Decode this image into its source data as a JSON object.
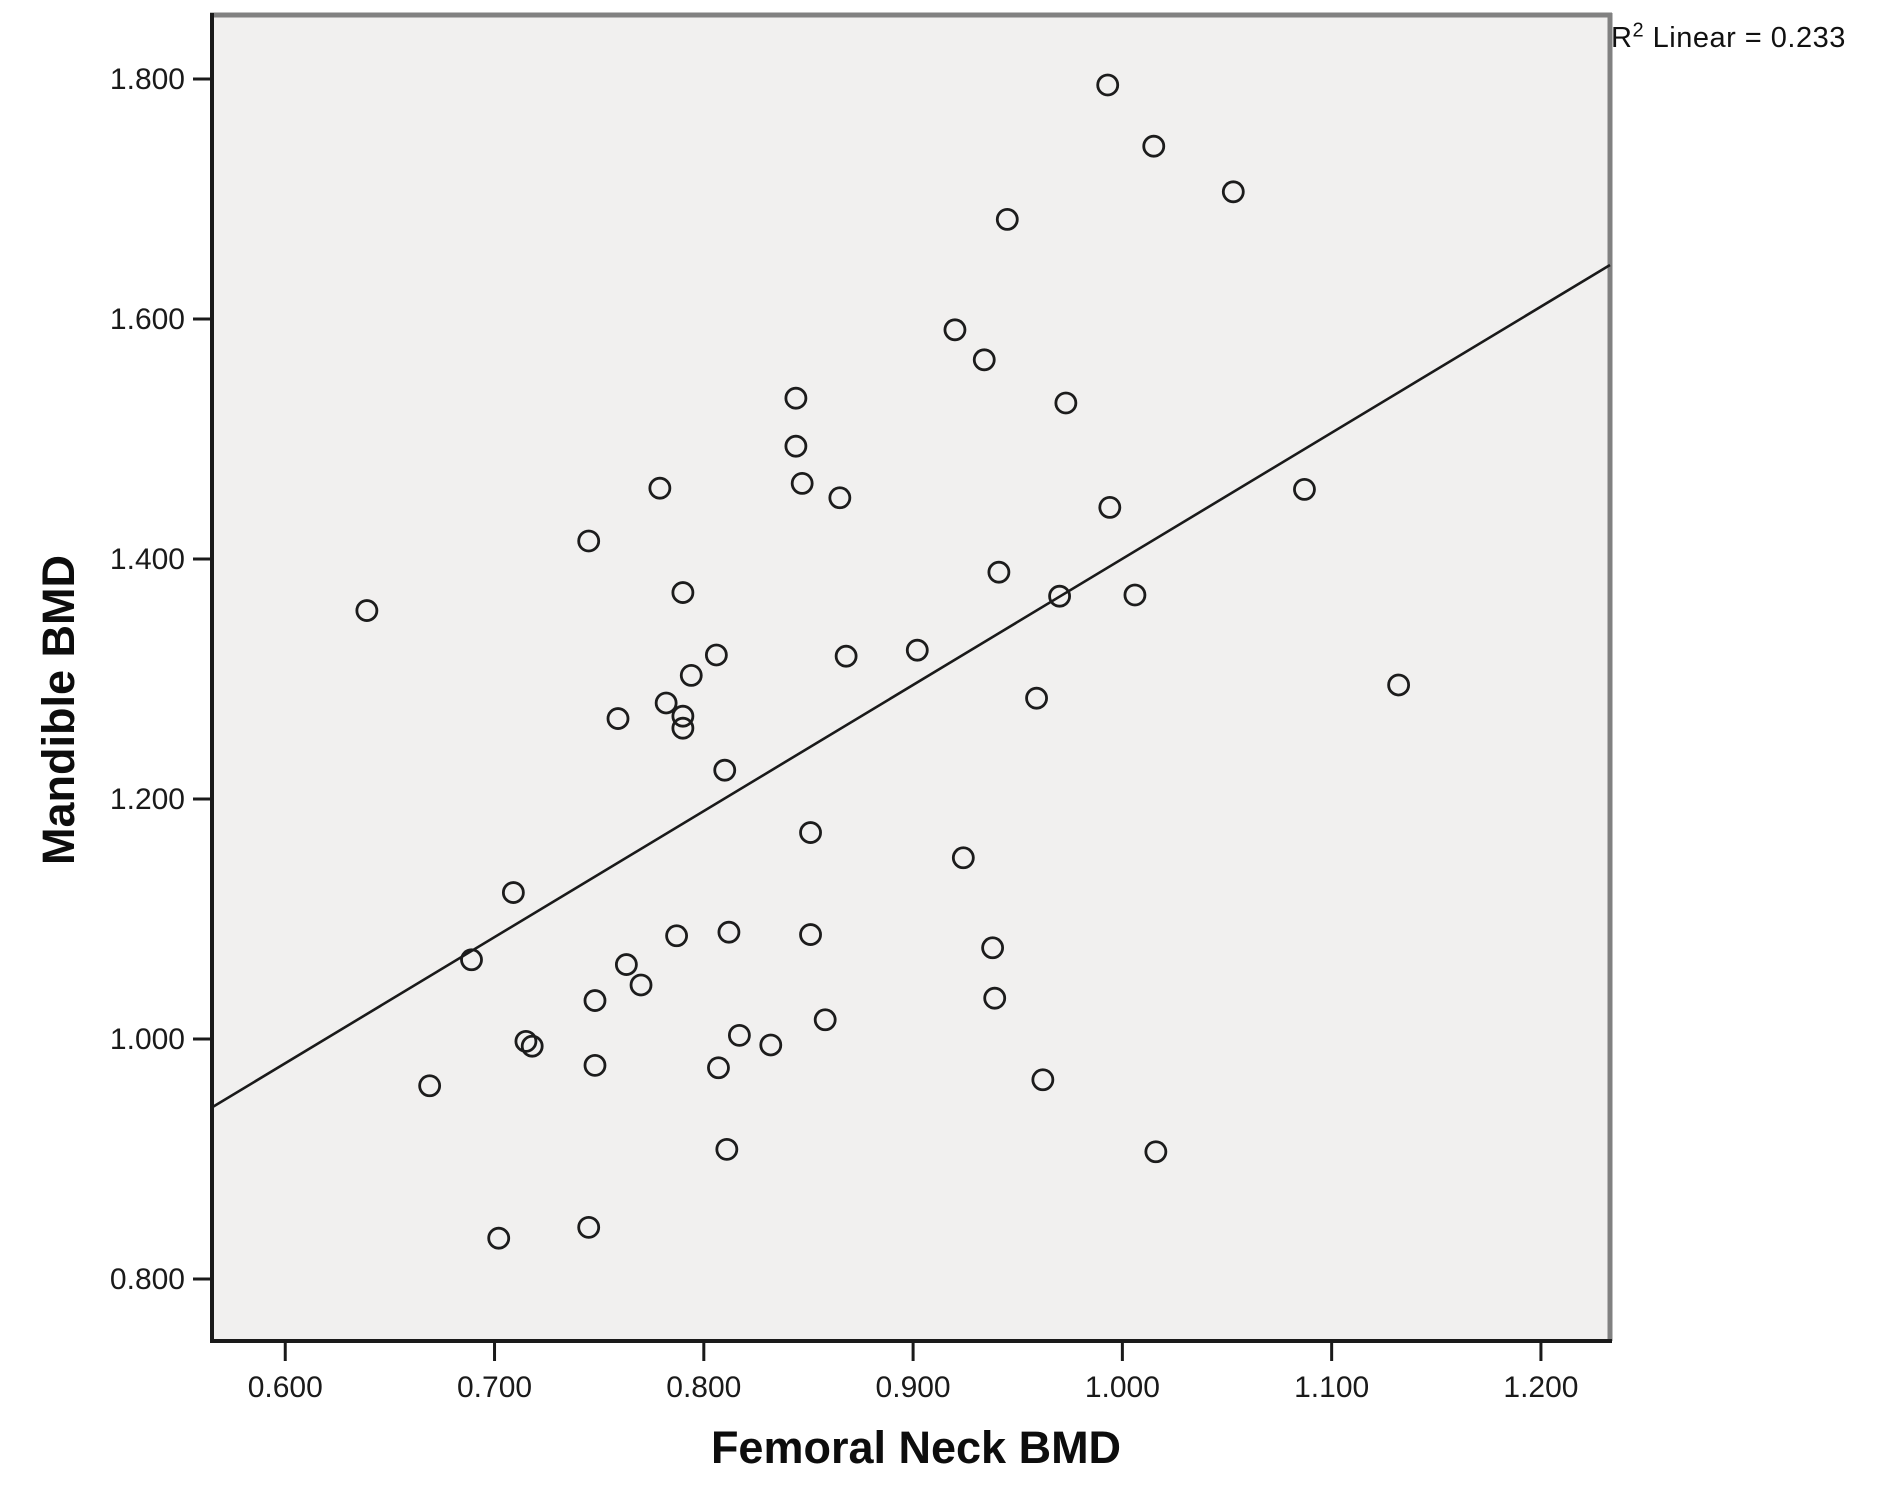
{
  "annotation": {
    "base": "R",
    "sup": "2",
    "rest": " Linear = 0.233"
  },
  "chart_data": {
    "type": "scatter",
    "title": "",
    "xlabel": "Femoral Neck BMD",
    "ylabel": "Mandible BMD",
    "legend": "none",
    "grid": false,
    "r_squared": 0.233,
    "xlim": [
      0.565,
      1.233
    ],
    "ylim": [
      0.7483,
      1.855
    ],
    "x_tick_values": [
      0.6,
      0.7,
      0.8,
      0.9,
      1.0,
      1.1,
      1.2
    ],
    "x_tick_labels": [
      "0.600",
      "0.700",
      "0.800",
      "0.900",
      "1.000",
      "1.100",
      "1.200"
    ],
    "y_tick_values": [
      0.8,
      1.0,
      1.2,
      1.4,
      1.6,
      1.8
    ],
    "y_tick_labels": [
      "0.800",
      "1.000",
      "1.200",
      "1.400",
      "1.600",
      "1.800"
    ],
    "fit_line": {
      "x": [
        0.565,
        1.233
      ],
      "y": [
        0.943,
        1.645
      ]
    },
    "marker": {
      "radius": 10,
      "stroke_width": 2.8,
      "color": "#1c1c1c",
      "fill": "none"
    },
    "colors": {
      "plot_bg": "#f1f0ef",
      "frame_dark": "#1a1a1a",
      "frame_gray": "#818181",
      "line": "#1a1a1a",
      "text": "#1a1a1a"
    },
    "points": [
      [
        0.993,
        1.795
      ],
      [
        1.015,
        1.744
      ],
      [
        1.053,
        1.706
      ],
      [
        0.945,
        1.683
      ],
      [
        0.92,
        1.591
      ],
      [
        0.934,
        1.566
      ],
      [
        0.844,
        1.534
      ],
      [
        0.973,
        1.53
      ],
      [
        0.844,
        1.494
      ],
      [
        0.847,
        1.463
      ],
      [
        0.865,
        1.451
      ],
      [
        0.994,
        1.443
      ],
      [
        1.087,
        1.458
      ],
      [
        0.779,
        1.459
      ],
      [
        0.745,
        1.415
      ],
      [
        0.639,
        1.357
      ],
      [
        0.941,
        1.389
      ],
      [
        0.97,
        1.369
      ],
      [
        1.006,
        1.37
      ],
      [
        0.79,
        1.372
      ],
      [
        0.902,
        1.324
      ],
      [
        0.868,
        1.319
      ],
      [
        0.806,
        1.32
      ],
      [
        0.794,
        1.303
      ],
      [
        0.782,
        1.28
      ],
      [
        0.759,
        1.267
      ],
      [
        0.79,
        1.269
      ],
      [
        0.79,
        1.259
      ],
      [
        0.959,
        1.284
      ],
      [
        1.132,
        1.295
      ],
      [
        0.81,
        1.224
      ],
      [
        0.851,
        1.172
      ],
      [
        0.924,
        1.151
      ],
      [
        0.709,
        1.122
      ],
      [
        0.787,
        1.086
      ],
      [
        0.812,
        1.089
      ],
      [
        0.851,
        1.087
      ],
      [
        0.938,
        1.076
      ],
      [
        0.689,
        1.066
      ],
      [
        0.763,
        1.062
      ],
      [
        0.77,
        1.045
      ],
      [
        0.748,
        1.032
      ],
      [
        0.939,
        1.034
      ],
      [
        0.858,
        1.016
      ],
      [
        0.817,
        1.003
      ],
      [
        0.832,
        0.995
      ],
      [
        0.715,
        0.998
      ],
      [
        0.718,
        0.994
      ],
      [
        0.748,
        0.978
      ],
      [
        0.807,
        0.976
      ],
      [
        0.669,
        0.961
      ],
      [
        0.962,
        0.966
      ],
      [
        0.811,
        0.908
      ],
      [
        1.016,
        0.906
      ],
      [
        0.745,
        0.843
      ],
      [
        0.702,
        0.834
      ]
    ]
  }
}
